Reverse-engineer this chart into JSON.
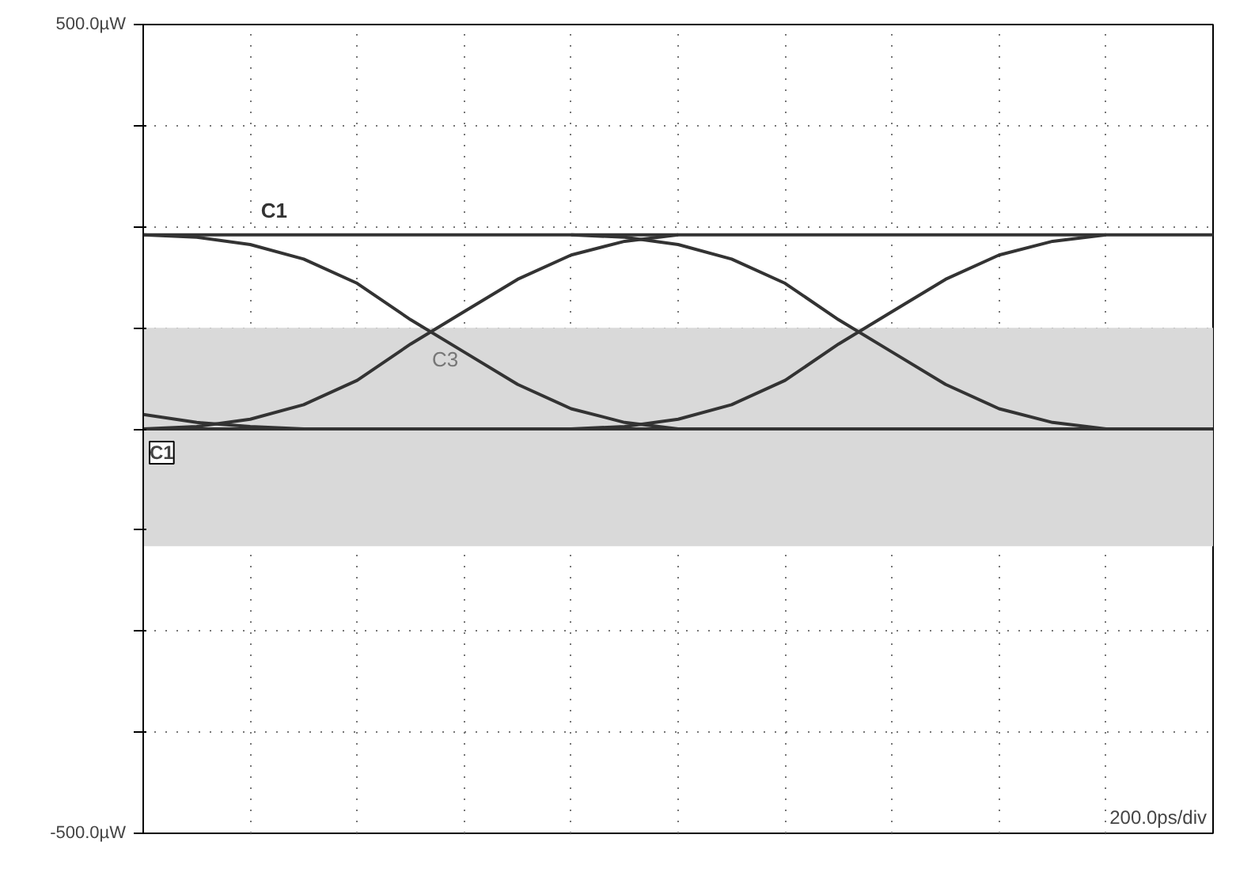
{
  "chart_data": {
    "type": "line",
    "categories": [
      null,
      null,
      null,
      null,
      null,
      null,
      null,
      null,
      null,
      null,
      null,
      null,
      null,
      null,
      null,
      null,
      null,
      null,
      null,
      null,
      null
    ],
    "series": [
      {
        "name": "C1",
        "color": "#333333",
        "values": [
          240,
          240,
          240,
          240,
          240,
          240,
          240,
          240,
          240,
          240,
          240,
          240,
          240,
          240,
          240,
          240,
          240,
          240,
          240,
          240,
          240
        ]
      },
      {
        "color": "#333333",
        "values": [
          0,
          0,
          0,
          0,
          0,
          0,
          0,
          0,
          0,
          0,
          0,
          0,
          0,
          0,
          0,
          0,
          0,
          0,
          0,
          0,
          0
        ]
      },
      {
        "color": "#333333",
        "values": [
          18,
          8,
          3,
          0,
          null,
          null,
          null,
          null,
          null,
          null,
          null,
          null,
          null,
          null,
          null,
          null,
          null,
          null,
          null,
          null,
          null
        ]
      },
      {
        "color": "#333333",
        "values": [
          0,
          3,
          12,
          30,
          60,
          105,
          145,
          185,
          215,
          232,
          240,
          null,
          null,
          null,
          null,
          null,
          null,
          null,
          null,
          null,
          null
        ]
      },
      {
        "color": "#333333",
        "values": [
          240,
          237,
          228,
          210,
          180,
          135,
          95,
          55,
          25,
          8,
          0,
          null,
          null,
          null,
          null,
          null,
          null,
          null,
          null,
          null,
          null
        ]
      },
      {
        "color": "#333333",
        "values": [
          null,
          null,
          null,
          null,
          null,
          null,
          null,
          null,
          0,
          3,
          12,
          30,
          60,
          105,
          145,
          185,
          215,
          232,
          240,
          null,
          null
        ]
      },
      {
        "color": "#333333",
        "values": [
          null,
          null,
          null,
          null,
          null,
          null,
          null,
          null,
          240,
          237,
          228,
          210,
          180,
          135,
          95,
          55,
          25,
          8,
          0,
          null,
          null
        ]
      }
    ],
    "bands": [
      {
        "axis": "y",
        "from": -145,
        "to": 125,
        "label": "C3",
        "color": "#d9d9d9"
      }
    ],
    "ylim": [
      -500,
      500
    ],
    "yticks": [
      {
        "value": -500,
        "label": "-500.0µW"
      },
      {
        "value": -375,
        "label": null
      },
      {
        "value": -250,
        "label": null
      },
      {
        "value": -125,
        "label": null
      },
      {
        "value": 0,
        "label": null
      },
      {
        "value": 125,
        "label": null
      },
      {
        "value": 250,
        "label": null
      },
      {
        "value": 375,
        "label": null
      },
      {
        "value": 500,
        "label": "500.0µW"
      }
    ],
    "tick_labels": "y",
    "grid": true,
    "line_style": "solid",
    "annotations": [
      {
        "text": "C1",
        "y": 0
      },
      "200.0ps/div"
    ]
  }
}
